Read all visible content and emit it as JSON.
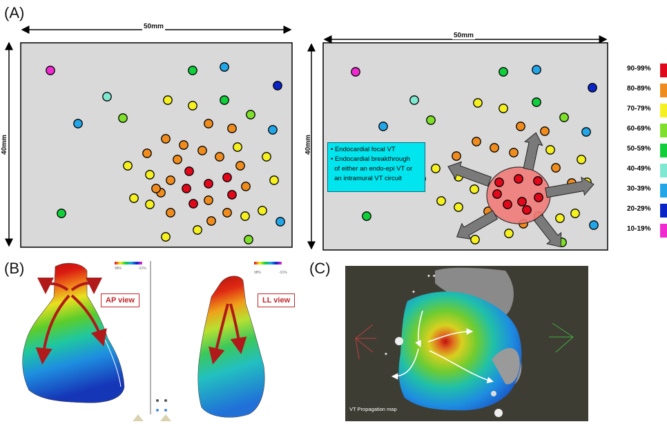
{
  "panels": {
    "a_label": "(A)",
    "b_label": "(B)",
    "c_label": "(C)"
  },
  "panel_a": {
    "left_width_label": "50mm",
    "left_height_label": "40mm",
    "right_width_label": "50mm",
    "right_height_label": "40mm",
    "callout_lines": [
      "• Endocardial focal VT",
      "• Endocardial breakthrough",
      "  of either an endo-epi VT or",
      "  an intramural VT circuit"
    ]
  },
  "legend": {
    "items": [
      {
        "label": "90-99%",
        "color": "#e0081a"
      },
      {
        "label": "80-89%",
        "color": "#f08c1e"
      },
      {
        "label": "70-79%",
        "color": "#f5f020"
      },
      {
        "label": "60-69%",
        "color": "#7ee02a"
      },
      {
        "label": "50-59%",
        "color": "#10cf3a"
      },
      {
        "label": "40-49%",
        "color": "#7fe8d0"
      },
      {
        "label": "30-39%",
        "color": "#22a6e8"
      },
      {
        "label": "20-29%",
        "color": "#0a24c8"
      },
      {
        "label": "10-19%",
        "color": "#f02ad0"
      }
    ]
  },
  "panel_b": {
    "ap_view_label": "AP view",
    "ll_view_label": "LL view",
    "scale_left_max": "98%",
    "scale_left_min": "-31%",
    "scale_right_max": "98%",
    "scale_right_min": "-31%"
  },
  "panel_c": {
    "caption": "VT Propagation map"
  }
}
